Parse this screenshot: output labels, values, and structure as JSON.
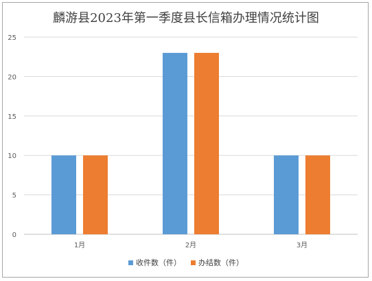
{
  "chart_data": {
    "type": "bar",
    "title": "麟游县2023年第一季度县长信箱办理情况统计图",
    "categories": [
      "1月",
      "2月",
      "3月"
    ],
    "series": [
      {
        "name": "收件数（件）",
        "values": [
          10,
          23,
          10
        ],
        "color": "#5b9bd5"
      },
      {
        "name": "办结数（件）",
        "values": [
          10,
          23,
          10
        ],
        "color": "#ed7d31"
      }
    ],
    "ylim": [
      0,
      25
    ],
    "yticks": [
      "0",
      "5",
      "10",
      "15",
      "20",
      "25"
    ],
    "grid": true,
    "legend": "bottom"
  }
}
